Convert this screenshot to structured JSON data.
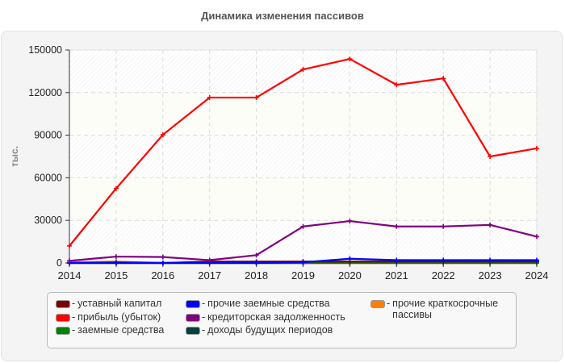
{
  "title": "Динамика изменения пассивов",
  "chart_data": {
    "type": "line",
    "title": "Динамика изменения пассивов",
    "xlabel": "",
    "ylabel": "тыс.",
    "x": [
      "2014",
      "2015",
      "2016",
      "2017",
      "2018",
      "2019",
      "2020",
      "2021",
      "2022",
      "2023",
      "2024"
    ],
    "ylim": [
      0,
      150000
    ],
    "yticks": [
      "0",
      "30000",
      "60000",
      "90000",
      "120000",
      "150000"
    ],
    "grid": true,
    "legend_position": "bottom",
    "series": [
      {
        "name": "уставный капитал",
        "color": "#7a0000",
        "values": [
          0,
          0,
          0,
          1000,
          1000,
          1000,
          1000,
          1000,
          1000,
          1000,
          1000
        ]
      },
      {
        "name": "прибыль (убыток)",
        "color": "#ff0000",
        "values": [
          12000,
          52500,
          90300,
          116500,
          116500,
          136300,
          143700,
          125500,
          130000,
          75000,
          80700
        ]
      },
      {
        "name": "заемные средства",
        "color": "#008000",
        "values": [
          0,
          0,
          0,
          0,
          0,
          0,
          0,
          0,
          0,
          0,
          0
        ]
      },
      {
        "name": "прочие заемные средства",
        "color": "#0000ff",
        "values": [
          0,
          0,
          0,
          0,
          0,
          500,
          3000,
          2000,
          2000,
          2000,
          2000
        ]
      },
      {
        "name": "кредиторская задолженность",
        "color": "#800080",
        "values": [
          1500,
          4500,
          4200,
          2000,
          5500,
          25700,
          29500,
          25700,
          25700,
          26800,
          18600
        ]
      },
      {
        "name": "доходы будущих периодов",
        "color": "#004040",
        "values": [
          0,
          500,
          0,
          0,
          0,
          0,
          0,
          0,
          0,
          0,
          0
        ]
      },
      {
        "name": "прочие краткосрочные пассивы",
        "color": "#ff8000",
        "values": [
          500,
          1000,
          0,
          0,
          0,
          0,
          0,
          0,
          0,
          0,
          0
        ]
      }
    ]
  },
  "legend": {
    "col1": [
      "уставный капитал",
      "прибыль (убыток)",
      "заемные средства"
    ],
    "col2": [
      "прочие заемные средства",
      "кредиторская задолженность",
      "доходы будущих периодов"
    ],
    "col3_line1": "прочие краткосрочные",
    "col3_line2": "пассивы"
  }
}
